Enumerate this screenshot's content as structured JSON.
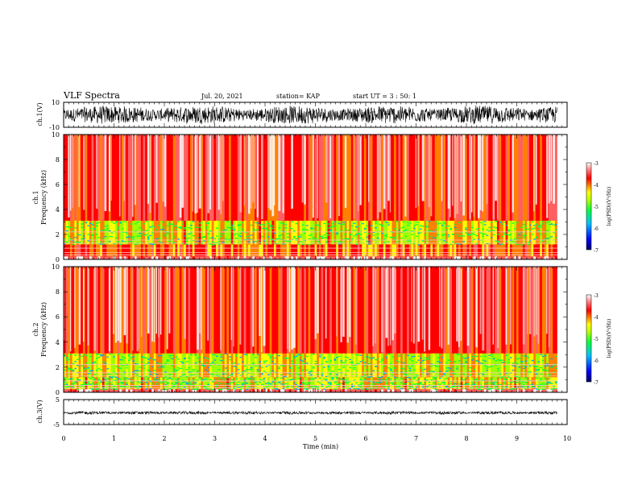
{
  "header": {
    "title": "VLF Spectra",
    "date": "Jul. 20, 2021",
    "station": "station= KAP",
    "start_time": "start UT =  3 : 50: 1"
  },
  "chart_data": [
    {
      "id": "ch1-waveform",
      "type": "line",
      "ylabel": "ch.1(V)",
      "ylim": [
        -10,
        10
      ],
      "yticks": [
        "10",
        "-10"
      ],
      "xlim": [
        0,
        10
      ],
      "trace_color": "#000000",
      "description_values": {
        "envelope_min": -8,
        "envelope_max": 8,
        "duration_min": 9.8
      }
    },
    {
      "id": "ch1-spectrogram",
      "type": "heatmap",
      "ylabel": "ch.1 Frequency (kHz)",
      "ylabel_lines": [
        "ch.1",
        "Frequency (kHz)"
      ],
      "ylim": [
        0,
        10
      ],
      "yticks": [
        "0",
        "2",
        "4",
        "6",
        "8",
        "10"
      ],
      "xlim": [
        0,
        10
      ],
      "colorbar": {
        "label": "log(PSD)(V²/Hz)",
        "ticks": [
          "-3",
          "-4",
          "-5",
          "-6",
          "-7"
        ],
        "range": [
          -7,
          -3
        ]
      },
      "bands_khz": [
        {
          "from": 0,
          "to": 0.25,
          "level": -3.2
        },
        {
          "from": 0.25,
          "to": 1.2,
          "level": -4.0
        },
        {
          "from": 1.2,
          "to": 3.1,
          "level": -4.4
        },
        {
          "from": 3.1,
          "to": 10,
          "level": -3.8
        }
      ]
    },
    {
      "id": "ch2-spectrogram",
      "type": "heatmap",
      "ylabel": "ch.2 Frequency (kHz)",
      "ylabel_lines": [
        "ch.2",
        "Frequency (kHz)"
      ],
      "ylim": [
        0,
        10
      ],
      "yticks": [
        "0",
        "2",
        "4",
        "6",
        "8",
        "10"
      ],
      "xlim": [
        0,
        10
      ],
      "colorbar": {
        "label": "log(PSD)(V²/Hz)",
        "ticks": [
          "-3",
          "-4",
          "-5",
          "-6",
          "-7"
        ],
        "range": [
          -7,
          -3
        ]
      },
      "bands_khz": [
        {
          "from": 0,
          "to": 0.25,
          "level": -3.2
        },
        {
          "from": 0.25,
          "to": 1.2,
          "level": -4.4
        },
        {
          "from": 1.2,
          "to": 3.1,
          "level": -4.5
        },
        {
          "from": 3.1,
          "to": 10,
          "level": -3.8
        }
      ]
    },
    {
      "id": "ch3-waveform",
      "type": "line",
      "ylabel": "ch.3(V)",
      "ylim": [
        -5,
        5
      ],
      "yticks": [
        "5",
        "-5"
      ],
      "xlim": [
        0,
        10
      ],
      "trace_color": "#000000",
      "description_values": {
        "envelope_min": -0.6,
        "envelope_max": 0.6,
        "offset": -0.3,
        "duration_min": 9.8
      }
    }
  ],
  "xaxis": {
    "label": "Time (min)",
    "ticks": [
      "0",
      "1",
      "2",
      "3",
      "4",
      "5",
      "6",
      "7",
      "8",
      "9",
      "10"
    ],
    "range": [
      0,
      10
    ]
  },
  "colors": {
    "scale": [
      "#000080",
      "#0000ff",
      "#00a0ff",
      "#00ff00",
      "#ffff00",
      "#ff8000",
      "#ff0000",
      "#ffffff"
    ]
  }
}
